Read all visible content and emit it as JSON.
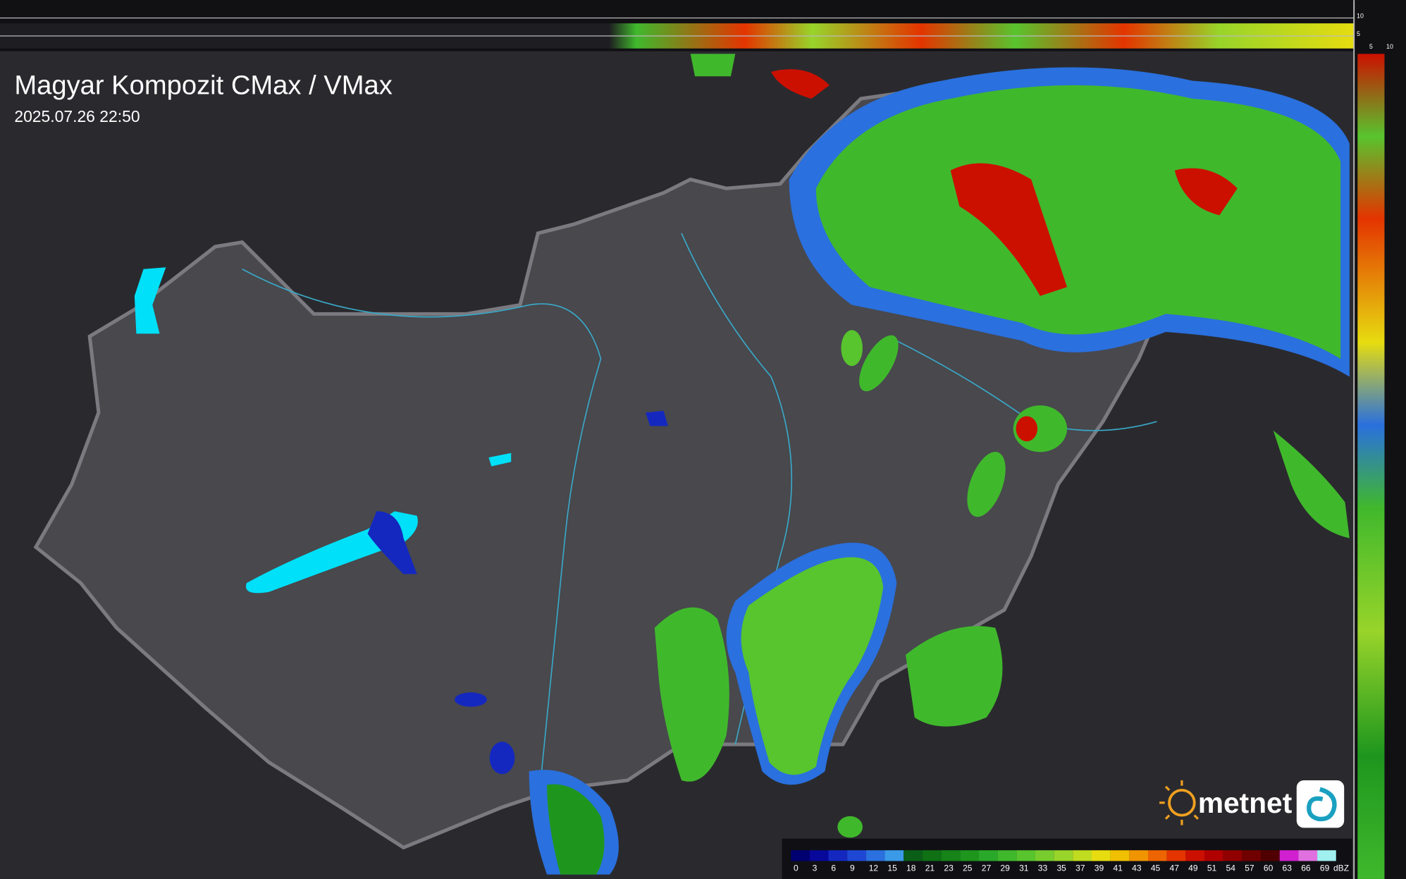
{
  "header": {
    "title": "Magyar Kompozit CMax / VMax",
    "timestamp": "2025.07.26 22:50"
  },
  "top_profile_ticks": [
    10,
    5
  ],
  "side_profile_ticks": [
    5,
    10
  ],
  "legend": {
    "stops": [
      0,
      3,
      6,
      9,
      12,
      15,
      18,
      21,
      23,
      25,
      27,
      29,
      31,
      33,
      35,
      37,
      39,
      41,
      43,
      45,
      47,
      49,
      51,
      54,
      57,
      60,
      63,
      66,
      69
    ],
    "colors": [
      "#000070",
      "#08089a",
      "#1428c0",
      "#1e48d4",
      "#2a70de",
      "#3a9ae8",
      "#0b5e18",
      "#0f7014",
      "#168418",
      "#1e961e",
      "#2aa82a",
      "#40b82c",
      "#58c42e",
      "#78cc2e",
      "#98d42a",
      "#c0dc20",
      "#e6dc10",
      "#f0c000",
      "#f09400",
      "#ee6400",
      "#e43400",
      "#cc1000",
      "#b00000",
      "#900000",
      "#700000",
      "#500000",
      "#d020d0",
      "#e070e0",
      "#a0f0f0"
    ],
    "unit": "dBZ"
  },
  "logo": "metnet"
}
